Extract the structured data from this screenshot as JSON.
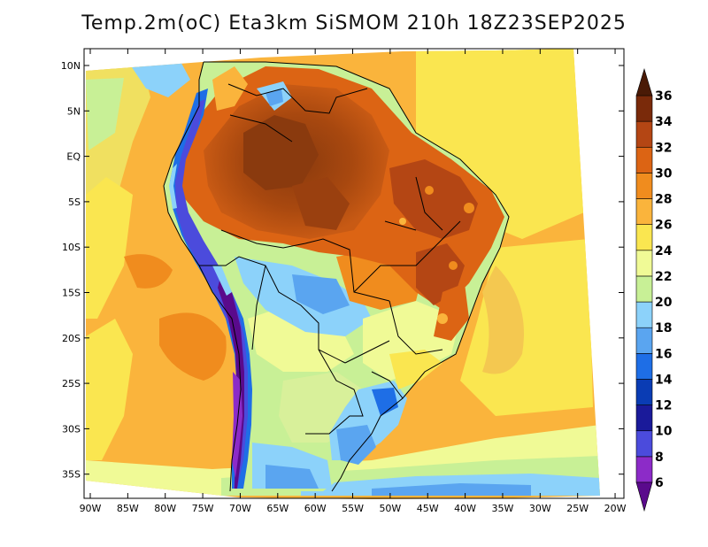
{
  "title": "Temp.2m(oC) Eta3km SiSMOM 210h 18Z23SEP2025",
  "map": {
    "variable": "2 m air temperature",
    "units": "oC",
    "region": "South America",
    "lat_labels": [
      "10N",
      "5N",
      "EQ",
      "5S",
      "10S",
      "15S",
      "20S",
      "25S",
      "30S",
      "35S"
    ],
    "lon_labels": [
      "90W",
      "85W",
      "80W",
      "75W",
      "70W",
      "65W",
      "60W",
      "55W",
      "50W",
      "45W",
      "40W",
      "35W",
      "30W",
      "25W",
      "20W"
    ]
  },
  "colorbar": {
    "levels": [
      "6",
      "8",
      "10",
      "12",
      "14",
      "16",
      "18",
      "20",
      "22",
      "24",
      "26",
      "28",
      "30",
      "32",
      "34",
      "36"
    ],
    "colors": [
      "#5a0a8c",
      "#8c2bc8",
      "#4b4bdc",
      "#1a1a9a",
      "#0a3cb4",
      "#1e6ee6",
      "#5aa5f0",
      "#8cd2fa",
      "#c8f096",
      "#f0fa96",
      "#fae650",
      "#fab43c",
      "#f08c1e",
      "#dc6414",
      "#b44614",
      "#7a2a0a",
      "#4a1a06"
    ]
  }
}
